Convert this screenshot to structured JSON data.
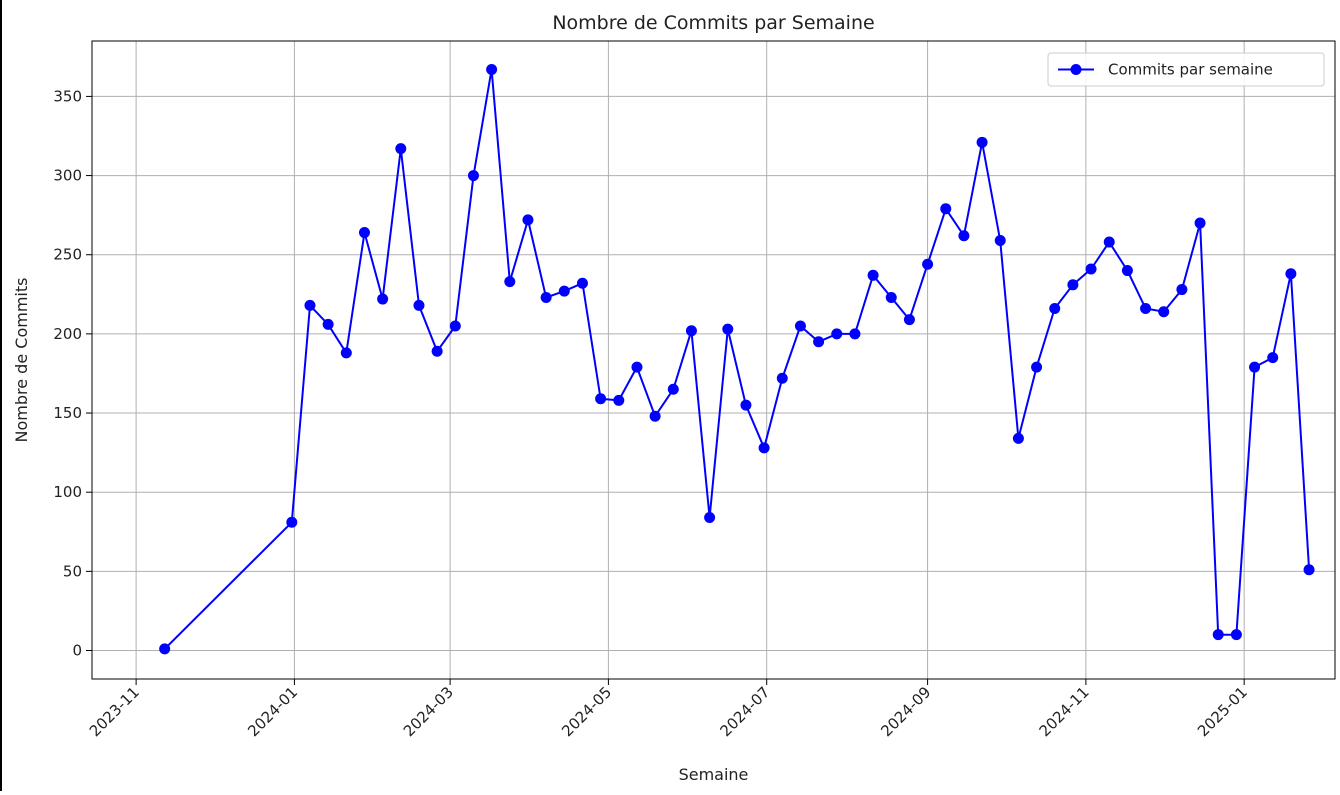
{
  "chart_data": {
    "type": "line",
    "title": "Nombre de Commits par Semaine",
    "xlabel": "Semaine",
    "ylabel": "Nombre de Commits",
    "x_axis": {
      "type": "date",
      "ticks": [
        "2023-11-01",
        "2024-01-01",
        "2024-03-01",
        "2024-05-01",
        "2024-07-01",
        "2024-09-01",
        "2024-11-01",
        "2025-01-01"
      ],
      "tick_labels": [
        "2023-11",
        "2024-01",
        "2024-03",
        "2024-05",
        "2024-07",
        "2024-09",
        "2024-11",
        "2025-01"
      ],
      "range": [
        "2023-10-15",
        "2025-02-05"
      ]
    },
    "y_axis": {
      "ticks": [
        0,
        50,
        100,
        150,
        200,
        250,
        300,
        350
      ],
      "tick_labels": [
        "0",
        "50",
        "100",
        "150",
        "200",
        "250",
        "300",
        "350"
      ],
      "range": [
        -18,
        385
      ]
    },
    "grid": true,
    "legend_position": "top-right",
    "colors": {
      "line": "#0000ff",
      "grid": "#b0b0b0",
      "axes": "#000000"
    },
    "series": [
      {
        "name": "Commits par semaine",
        "marker": "circle",
        "x": [
          "2023-11-12",
          "2023-12-31",
          "2024-01-07",
          "2024-01-14",
          "2024-01-21",
          "2024-01-28",
          "2024-02-04",
          "2024-02-11",
          "2024-02-18",
          "2024-02-25",
          "2024-03-03",
          "2024-03-10",
          "2024-03-17",
          "2024-03-24",
          "2024-03-31",
          "2024-04-07",
          "2024-04-14",
          "2024-04-21",
          "2024-04-28",
          "2024-05-05",
          "2024-05-12",
          "2024-05-19",
          "2024-05-26",
          "2024-06-02",
          "2024-06-09",
          "2024-06-16",
          "2024-06-23",
          "2024-06-30",
          "2024-07-07",
          "2024-07-14",
          "2024-07-21",
          "2024-07-28",
          "2024-08-04",
          "2024-08-11",
          "2024-08-18",
          "2024-08-25",
          "2024-09-01",
          "2024-09-08",
          "2024-09-15",
          "2024-09-22",
          "2024-09-29",
          "2024-10-06",
          "2024-10-13",
          "2024-10-20",
          "2024-10-27",
          "2024-11-03",
          "2024-11-10",
          "2024-11-17",
          "2024-11-24",
          "2024-12-01",
          "2024-12-08",
          "2024-12-15",
          "2024-12-22",
          "2024-12-29",
          "2025-01-05",
          "2025-01-12",
          "2025-01-19",
          "2025-01-26"
        ],
        "y": [
          1,
          81,
          218,
          206,
          188,
          264,
          222,
          317,
          218,
          189,
          205,
          300,
          367,
          233,
          272,
          223,
          227,
          232,
          159,
          158,
          179,
          148,
          165,
          202,
          84,
          203,
          155,
          128,
          172,
          205,
          195,
          200,
          200,
          237,
          223,
          209,
          244,
          279,
          262,
          321,
          259,
          134,
          179,
          216,
          231,
          241,
          258,
          240,
          216,
          214,
          228,
          270,
          10,
          10,
          179,
          185,
          238,
          51
        ]
      }
    ]
  }
}
